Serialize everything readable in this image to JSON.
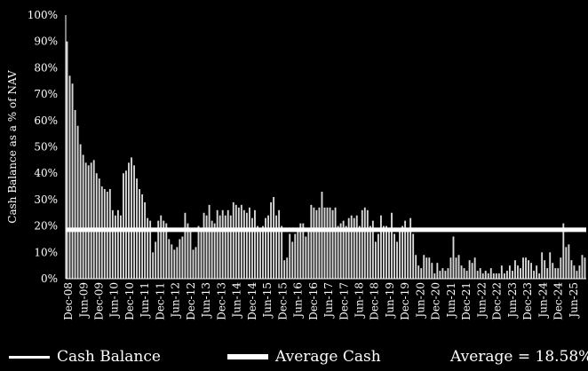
{
  "chart_data": {
    "type": "bar",
    "ylabel": "Cash Balance as a % of NAV",
    "ylim": [
      0,
      100
    ],
    "yticks": [
      "0%",
      "10%",
      "20%",
      "30%",
      "40%",
      "50%",
      "60%",
      "70%",
      "80%",
      "90%",
      "100%"
    ],
    "xtick_labels": [
      "Dec-08",
      "Jun-09",
      "Dec-09",
      "Jun-10",
      "Dec-10",
      "Jun-11",
      "Dec-11",
      "Jun-12",
      "Dec-12",
      "Jun-13",
      "Dec-13",
      "Jun-14",
      "Dec-14",
      "Jun-15",
      "Dec-15",
      "Jun-16",
      "Dec-16",
      "Jun-17",
      "Dec-17",
      "Jun-18",
      "Dec-18",
      "Jun-19",
      "Dec-19",
      "Jun-20",
      "Dec-20",
      "Jun-21",
      "Dec-21",
      "Jun-22",
      "Dec-22",
      "Jun-23",
      "Dec-23",
      "Jun-24",
      "Dec-24",
      "Jun-25"
    ],
    "average_line_value": 18.58,
    "series": [
      {
        "name": "Cash Balance",
        "values": [
          90,
          77,
          74,
          64,
          58,
          51,
          47,
          44,
          43,
          44,
          45,
          40,
          38,
          35,
          34,
          33,
          34,
          26,
          24,
          26,
          24,
          40,
          41,
          44,
          46,
          43,
          38,
          34,
          32,
          29,
          23,
          22,
          10,
          14,
          22,
          24,
          22,
          21,
          15,
          13,
          11,
          12,
          15,
          16,
          25,
          21,
          19,
          11,
          12,
          20,
          19,
          25,
          24,
          28,
          22,
          21,
          26,
          24,
          26,
          24,
          26,
          24,
          29,
          28,
          27,
          28,
          26,
          25,
          27,
          23,
          26,
          20,
          19,
          20,
          23,
          24,
          29,
          31,
          24,
          26,
          20,
          7,
          8,
          17,
          14,
          17,
          19,
          21,
          21,
          16,
          18,
          28,
          27,
          26,
          27,
          33,
          27,
          27,
          27,
          26,
          27,
          20,
          21,
          22,
          20,
          23,
          24,
          23,
          24,
          20,
          26,
          27,
          26,
          20,
          22,
          14,
          17,
          24,
          20,
          20,
          18,
          25,
          17,
          14,
          19,
          20,
          22,
          18,
          23,
          17,
          9,
          5,
          4,
          9,
          8,
          8,
          6,
          2,
          6,
          3,
          4,
          3,
          4,
          8,
          16,
          8,
          9,
          5,
          4,
          3,
          7,
          6,
          8,
          3,
          4,
          2,
          3,
          2,
          4,
          2,
          2,
          2,
          5,
          2,
          3,
          5,
          3,
          7,
          5,
          4,
          8,
          8,
          7,
          6,
          3,
          5,
          2,
          10,
          7,
          4,
          10,
          6,
          4,
          4,
          8,
          21,
          12,
          13,
          7,
          5,
          3,
          5,
          9,
          8
        ]
      },
      {
        "name": "Average Cash",
        "value": 18.58
      }
    ],
    "legend": {
      "placement": "bottom",
      "items": [
        "Cash Balance",
        "Average Cash"
      ],
      "average_text": "Average = 18.58%"
    }
  },
  "colors": {
    "background": "#000000",
    "bars": "#d9d9d9",
    "bar_edge": "#ffffff",
    "avg_line": "#ffffff",
    "text": "#ffffff"
  }
}
